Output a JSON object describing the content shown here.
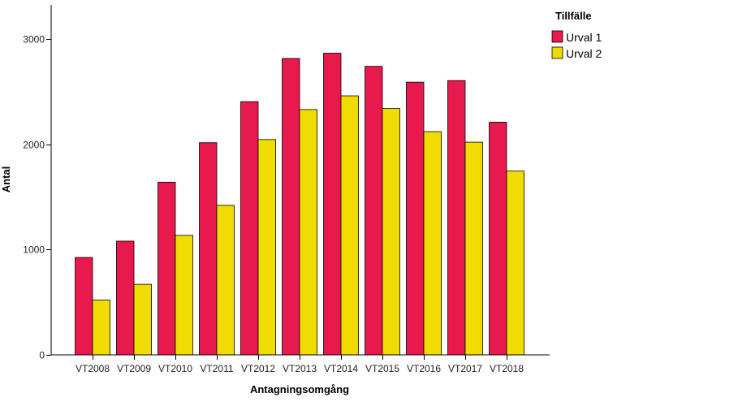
{
  "chart_data": {
    "type": "bar",
    "xlabel": "Antagningsomgång",
    "ylabel": "Antal",
    "ylim": [
      0,
      3000
    ],
    "yticks": [
      0,
      1000,
      2000,
      3000
    ],
    "grid": false,
    "legend_position": "top-right",
    "legend_title": "Tillfälle",
    "categories": [
      "VT2008",
      "VT2009",
      "VT2010",
      "VT2011",
      "VT2012",
      "VT2013",
      "VT2014",
      "VT2015",
      "VT2016",
      "VT2017",
      "VT2018"
    ],
    "series": [
      {
        "name": "Urval 1",
        "color": "#e8194c",
        "values": [
          925,
          1080,
          1640,
          2015,
          2405,
          2815,
          2865,
          2740,
          2590,
          2605,
          2210
        ]
      },
      {
        "name": "Urval 2",
        "color": "#f0dc00",
        "values": [
          520,
          670,
          1135,
          1420,
          2045,
          2330,
          2460,
          2340,
          2120,
          2020,
          1745
        ]
      }
    ]
  }
}
